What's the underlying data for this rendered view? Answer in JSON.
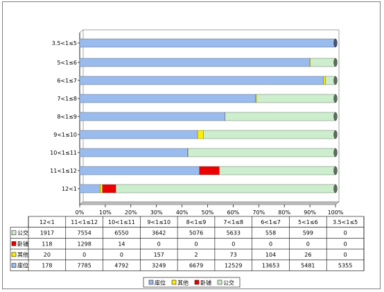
{
  "chart_data": {
    "type": "bar",
    "orientation": "horizontal",
    "stacked": "percent",
    "categories": [
      "12<1",
      "11<1≤12",
      "10<1≤11",
      "9<1≤10",
      "8<1≤9",
      "7<1≤8",
      "6<1≤7",
      "5<1≤6",
      "3.5<1≤5"
    ],
    "series": [
      {
        "name": "座位",
        "color": "#99bbee",
        "values": [
          178,
          7785,
          4792,
          3249,
          6679,
          12529,
          13653,
          5481,
          5355
        ]
      },
      {
        "name": "其他",
        "color": "#ffee00",
        "values": [
          20,
          0,
          0,
          157,
          2,
          73,
          104,
          26,
          0
        ]
      },
      {
        "name": "卧铺",
        "color": "#ee0000",
        "values": [
          118,
          1298,
          14,
          0,
          0,
          0,
          0,
          0,
          0
        ]
      },
      {
        "name": "公交",
        "color": "#cceecc",
        "values": [
          1917,
          7554,
          6550,
          3642,
          5076,
          5633,
          558,
          599,
          0
        ]
      }
    ],
    "table_order": [
      "公交",
      "卧铺",
      "其他",
      "座位"
    ],
    "xlim": [
      0,
      100
    ],
    "xticks": [
      "0%",
      "10%",
      "20%",
      "30%",
      "40%",
      "50%",
      "60%",
      "70%",
      "80%",
      "90%",
      "100%"
    ],
    "legend_position": "bottom",
    "grid": false
  }
}
